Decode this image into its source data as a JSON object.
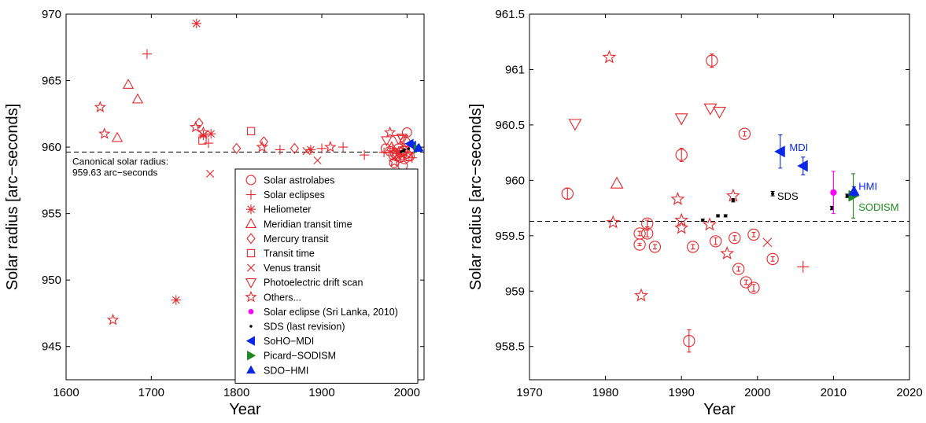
{
  "chart_data": [
    {
      "type": "scatter",
      "title": "",
      "xlabel": "Year",
      "ylabel": "Solar radius [arc−seconds]",
      "xlim": [
        1600,
        2020
      ],
      "ylim": [
        942.5,
        970
      ],
      "xticks": [
        1600,
        1700,
        1800,
        1900,
        2000
      ],
      "yticks": [
        945,
        950,
        955,
        960,
        965,
        970
      ],
      "grid": false,
      "reference_line": {
        "y": 959.63,
        "label_lines": [
          "Canonical solar radius:",
          "959.63 arc−seconds"
        ]
      },
      "legend": {
        "placement": "bottom-right",
        "entries": [
          {
            "label": "Solar astrolabes",
            "marker": "circle",
            "color": "#e8262b"
          },
          {
            "label": "Solar eclipses",
            "marker": "plus",
            "color": "#e8262b"
          },
          {
            "label": "Heliometer",
            "marker": "asterisk",
            "color": "#e8262b"
          },
          {
            "label": "Meridian transit time",
            "marker": "triangle-up",
            "color": "#e8262b"
          },
          {
            "label": "Mercury transit",
            "marker": "diamond",
            "color": "#e8262b"
          },
          {
            "label": "Transit time",
            "marker": "square",
            "color": "#e8262b"
          },
          {
            "label": "Venus transit",
            "marker": "x",
            "color": "#e8262b"
          },
          {
            "label": "Photoelectric drift scan",
            "marker": "triangle-down",
            "color": "#e8262b"
          },
          {
            "label": "Others...",
            "marker": "star",
            "color": "#e8262b"
          },
          {
            "label": "Solar eclipse (Sri Lanka, 2010)",
            "marker": "dot",
            "color": "#ff00ff"
          },
          {
            "label": "SDS (last revision)",
            "marker": "smalldot",
            "color": "#000000"
          },
          {
            "label": "SoHO−MDI",
            "marker": "tri-left",
            "color": "#0a26e6"
          },
          {
            "label": "Picard−SODISM",
            "marker": "tri-right",
            "color": "#1d8a1d"
          },
          {
            "label": "SDO−HMI",
            "marker": "tri-up-filled",
            "color": "#0a26e6"
          }
        ]
      },
      "series": [
        {
          "marker": "circle",
          "color": "#e8262b",
          "points": [
            [
              1975,
              959.9
            ],
            [
              1980,
              959.7
            ],
            [
              1984,
              959.4
            ],
            [
              1986,
              959.5
            ],
            [
              1988,
              959.3
            ],
            [
              1990,
              959.9
            ],
            [
              1992,
              959.2
            ],
            [
              1994,
              959.4
            ],
            [
              1995,
              958.6
            ],
            [
              1996,
              959.7
            ],
            [
              1997,
              959.1
            ],
            [
              1998,
              960.4
            ],
            [
              1999,
              959.5
            ],
            [
              2000,
              961.1
            ],
            [
              2001,
              959.3
            ],
            [
              2003,
              959.3
            ],
            [
              1985,
              958.8
            ],
            [
              1993,
              959.6
            ]
          ]
        },
        {
          "marker": "plus",
          "color": "#e8262b",
          "points": [
            [
              1695,
              967
            ],
            [
              1767,
              960.3
            ],
            [
              1851,
              959.8
            ],
            [
              1900,
              959.9
            ],
            [
              1925,
              960
            ],
            [
              1950,
              959.4
            ],
            [
              1973,
              959.6
            ],
            [
              1983,
              959.9
            ],
            [
              1991,
              959.5
            ],
            [
              2006,
              959.2
            ]
          ]
        },
        {
          "marker": "asterisk",
          "color": "#e8262b",
          "points": [
            [
              1729,
              948.5
            ],
            [
              1753,
              969.3
            ],
            [
              1761,
              960.9
            ],
            [
              1770,
              961
            ],
            [
              1887,
              959.8
            ]
          ]
        },
        {
          "marker": "triangle-up",
          "color": "#e8262b",
          "points": [
            [
              1660,
              960.7
            ],
            [
              1673,
              964.7
            ],
            [
              1684,
              963.6
            ],
            [
              1982,
              960
            ]
          ]
        },
        {
          "marker": "diamond",
          "color": "#e8262b",
          "points": [
            [
              1756,
              961.8
            ],
            [
              1800,
              959.9
            ],
            [
              1832,
              960.4
            ],
            [
              1868,
              959.9
            ],
            [
              1986,
              959.6
            ]
          ]
        },
        {
          "marker": "square",
          "color": "#e8262b",
          "points": [
            [
              1760,
              960.5
            ],
            [
              1817,
              961.2
            ]
          ]
        },
        {
          "marker": "x",
          "color": "#e8262b",
          "points": [
            [
              1769,
              958
            ],
            [
              1882,
              959.7
            ],
            [
              1895,
              959
            ],
            [
              2004,
              959.4
            ]
          ]
        },
        {
          "marker": "triangle-down",
          "color": "#e8262b",
          "points": [
            [
              1976,
              960.5
            ],
            [
              1990,
              960.6
            ],
            [
              1994,
              960.7
            ],
            [
              1995,
              960.6
            ]
          ]
        },
        {
          "marker": "star",
          "color": "#e8262b",
          "points": [
            [
              1640,
              963
            ],
            [
              1645,
              961
            ],
            [
              1655,
              947
            ],
            [
              1752,
              961.5
            ],
            [
              1761,
              961.1
            ],
            [
              1830,
              960
            ],
            [
              1910,
              960
            ],
            [
              1980,
              961.1
            ],
            [
              1985,
              958.9
            ],
            [
              1990,
              959.6
            ],
            [
              1997,
              959.9
            ]
          ]
        },
        {
          "marker": "dot",
          "color": "#ff00ff",
          "points": [
            [
              2010,
              959.89
            ]
          ]
        },
        {
          "marker": "smalldot",
          "color": "#000000",
          "points": [
            [
              1993,
              959.65
            ],
            [
              1995,
              959.69
            ],
            [
              1996,
              959.69
            ],
            [
              1997,
              959.82
            ],
            [
              2002,
              959.88
            ],
            [
              2010,
              959.76
            ],
            [
              2012,
              959.86
            ]
          ]
        },
        {
          "marker": "tri-left",
          "color": "#0a26e6",
          "points": [
            [
              2003,
              960.26
            ],
            [
              2006,
              960.12
            ]
          ]
        },
        {
          "marker": "tri-right",
          "color": "#1d8a1d",
          "points": [
            [
              2012.6,
              959.86
            ]
          ]
        },
        {
          "marker": "tri-up-filled",
          "color": "#0a26e6",
          "points": [
            [
              2012.8,
              959.9
            ],
            [
              2014,
              959.95
            ]
          ]
        }
      ]
    },
    {
      "type": "scatter",
      "title": "",
      "xlabel": "Year",
      "ylabel": "Solar radius [arc−seconds]",
      "xlim": [
        1970,
        2020
      ],
      "ylim": [
        958.2,
        961.5
      ],
      "xticks": [
        1970,
        1980,
        1990,
        2000,
        2010,
        2020
      ],
      "yticks": [
        958.5,
        959,
        959.5,
        960,
        960.5,
        961,
        961.5
      ],
      "grid": false,
      "reference_line": {
        "y": 959.63
      },
      "annotations": [
        {
          "text": "MDI",
          "x": 2004.2,
          "y": 960.3,
          "color": "#0a26e6"
        },
        {
          "text": "SDS",
          "x": 2002.6,
          "y": 959.86,
          "color": "#000000"
        },
        {
          "text": "HMI",
          "x": 2013.3,
          "y": 959.95,
          "color": "#0a26e6"
        },
        {
          "text": "SODISM",
          "x": 2013.3,
          "y": 959.76,
          "color": "#1d8a1d"
        }
      ],
      "series": [
        {
          "marker": "circle",
          "color": "#e8262b",
          "points": [
            [
              1975,
              959.88,
              0.05
            ],
            [
              1984.5,
              959.52,
              0.02
            ],
            [
              1985.5,
              959.52,
              0.03
            ],
            [
              1985.5,
              959.61,
              0.03
            ],
            [
              1986.5,
              959.4,
              0.02
            ],
            [
              1990,
              960.23,
              0.06
            ],
            [
              1991,
              958.55,
              0.1
            ],
            [
              1991.5,
              959.4,
              0.02
            ],
            [
              1994,
              961.08,
              0.06
            ],
            [
              1994.5,
              959.45,
              0.03
            ],
            [
              1997,
              959.48,
              0.02
            ],
            [
              1997.5,
              959.2,
              0.02
            ],
            [
              1998.3,
              960.42,
              0.02
            ],
            [
              1998.5,
              959.08,
              0.02
            ],
            [
              1999.5,
              959.51,
              0.02
            ],
            [
              1999.5,
              959.03,
              0.03
            ],
            [
              2002,
              959.29,
              0.02
            ],
            [
              1984.5,
              959.42,
              0.01
            ]
          ]
        },
        {
          "marker": "plus",
          "color": "#e8262b",
          "points": [
            [
              2006,
              959.22
            ]
          ]
        },
        {
          "marker": "x",
          "color": "#e8262b",
          "points": [
            [
              2001.3,
              959.44
            ]
          ]
        },
        {
          "marker": "triangle-up",
          "color": "#e8262b",
          "points": [
            [
              1981.5,
              959.97
            ]
          ]
        },
        {
          "marker": "triangle-down",
          "color": "#e8262b",
          "points": [
            [
              1976,
              960.51
            ],
            [
              1990,
              960.56
            ],
            [
              1993.8,
              960.65
            ],
            [
              1995,
              960.62
            ]
          ]
        },
        {
          "marker": "star",
          "color": "#e8262b",
          "points": [
            [
              1980.5,
              961.11
            ],
            [
              1981,
              959.62
            ],
            [
              1984.7,
              958.96
            ],
            [
              1989.5,
              959.83
            ],
            [
              1990,
              959.64
            ],
            [
              1990,
              959.57
            ],
            [
              1993.7,
              959.6
            ],
            [
              1996,
              959.34
            ],
            [
              1996.8,
              959.86
            ]
          ]
        },
        {
          "marker": "smalldot",
          "color": "#000000",
          "points": [
            [
              1992.8,
              959.64,
              0.01
            ],
            [
              1994.8,
              959.68,
              0.01
            ],
            [
              1995.8,
              959.68,
              0.01
            ],
            [
              1996.8,
              959.82,
              0.015
            ],
            [
              2002,
              959.88,
              0.02
            ],
            [
              2009.8,
              959.75,
              0.015
            ],
            [
              2011.8,
              959.86,
              0.015
            ]
          ]
        },
        {
          "marker": "dot",
          "color": "#ff00ff",
          "points": [
            [
              2010,
              959.89,
              0.19
            ]
          ]
        },
        {
          "marker": "tri-left",
          "color": "#0a26e6",
          "points": [
            [
              2003,
              960.26,
              0.15
            ],
            [
              2006,
              960.13,
              0.08
            ]
          ]
        },
        {
          "marker": "tri-right",
          "color": "#1d8a1d",
          "points": [
            [
              2012.6,
              959.86,
              0.2
            ]
          ]
        },
        {
          "marker": "tri-up-filled",
          "color": "#0a26e6",
          "points": [
            [
              2012.7,
              959.9,
              0.04
            ]
          ]
        }
      ]
    }
  ]
}
